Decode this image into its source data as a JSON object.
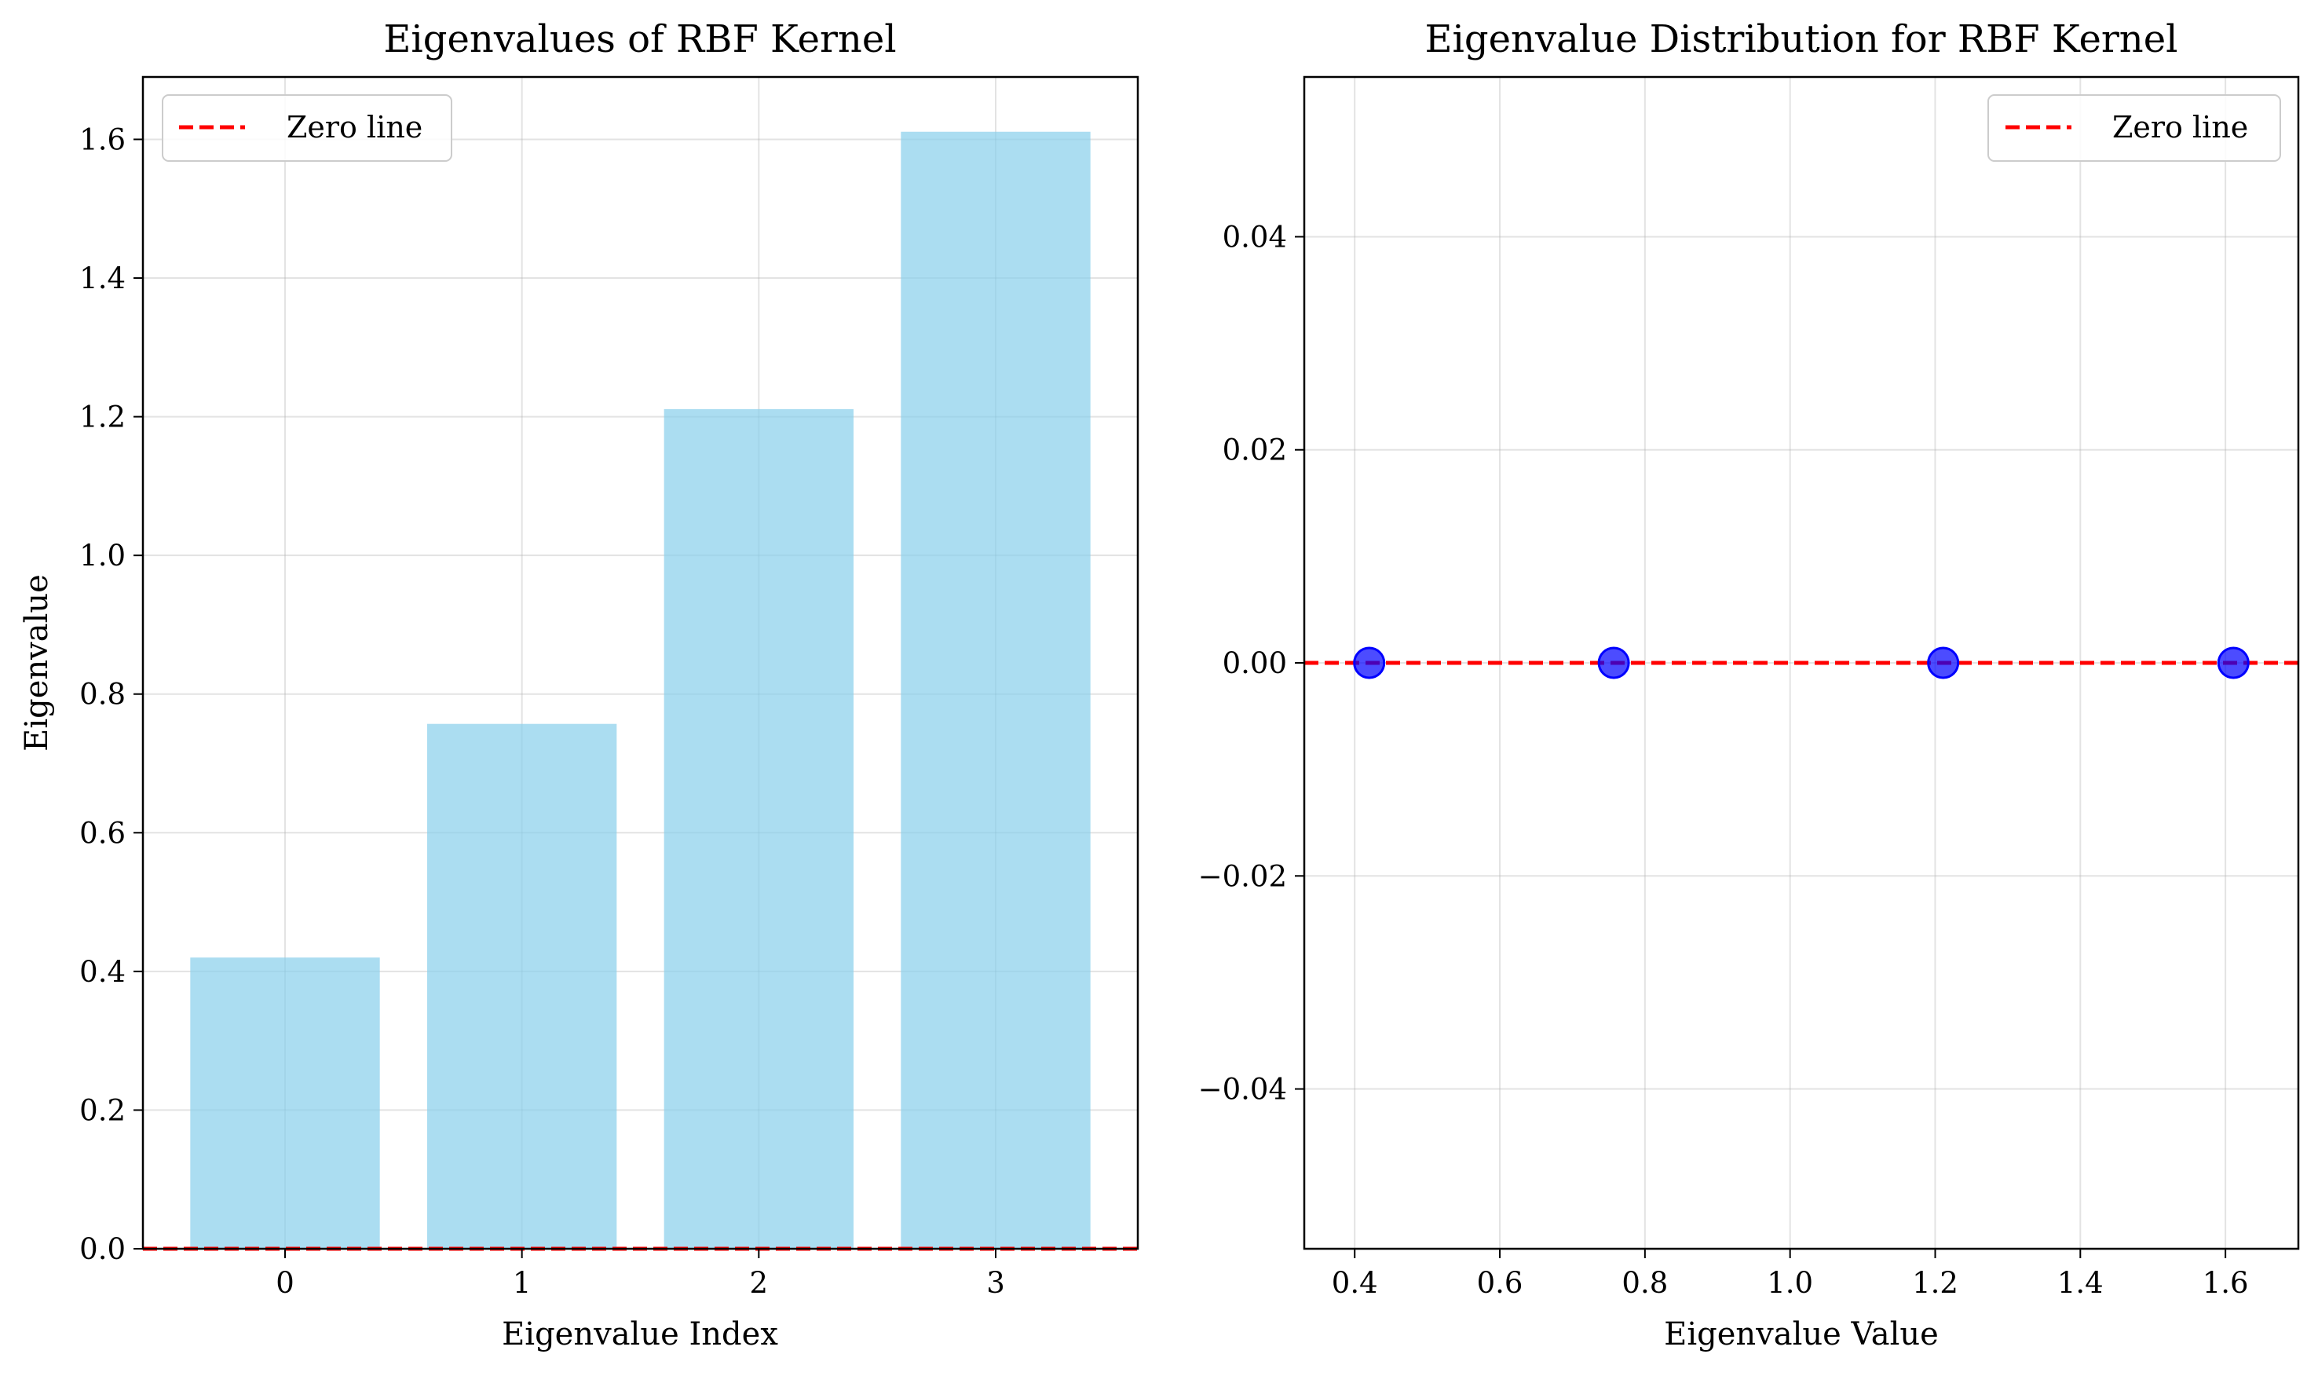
{
  "chart_data": [
    {
      "type": "bar",
      "title": "Eigenvalues of RBF Kernel",
      "xlabel": "Eigenvalue Index",
      "ylabel": "Eigenvalue",
      "categories": [
        "0",
        "1",
        "2",
        "3"
      ],
      "values": [
        0.42,
        0.757,
        1.211,
        1.611
      ],
      "bar_color": "#87CEEB",
      "ylim": [
        0,
        1.69
      ],
      "xlim": [
        -0.6,
        3.6
      ],
      "yticks": [
        0.0,
        0.2,
        0.4,
        0.6,
        0.8,
        1.0,
        1.2,
        1.4,
        1.6
      ],
      "ytick_labels": [
        "0.0",
        "0.2",
        "0.4",
        "0.6",
        "0.8",
        "1.0",
        "1.2",
        "1.4",
        "1.6"
      ],
      "reference_line": {
        "y": 0,
        "label": "Zero line",
        "color": "#ff0000",
        "style": "dashed"
      },
      "legend": {
        "placement": "top-left",
        "entries": [
          "Zero line"
        ]
      },
      "grid": true
    },
    {
      "type": "scatter",
      "title": "Eigenvalue Distribution for RBF Kernel",
      "xlabel": "Eigenvalue Value",
      "ylabel": "",
      "x": [
        0.42,
        0.757,
        1.211,
        1.611
      ],
      "y": [
        0,
        0,
        0,
        0
      ],
      "point_color": "#0000ff",
      "xlim": [
        0.3305,
        1.7005
      ],
      "ylim": [
        -0.055,
        0.055
      ],
      "xticks": [
        0.4,
        0.6,
        0.8,
        1.0,
        1.2,
        1.4,
        1.6
      ],
      "xtick_labels": [
        "0.4",
        "0.6",
        "0.8",
        "1.0",
        "1.2",
        "1.4",
        "1.6"
      ],
      "yticks": [
        -0.04,
        -0.02,
        0.0,
        0.02,
        0.04
      ],
      "ytick_labels": [
        "−0.04",
        "−0.02",
        "0.00",
        "0.02",
        "0.04"
      ],
      "reference_line": {
        "y": 0,
        "label": "Zero line",
        "color": "#ff0000",
        "style": "dashed"
      },
      "legend": {
        "placement": "top-right",
        "entries": [
          "Zero line"
        ]
      },
      "grid": true
    }
  ]
}
